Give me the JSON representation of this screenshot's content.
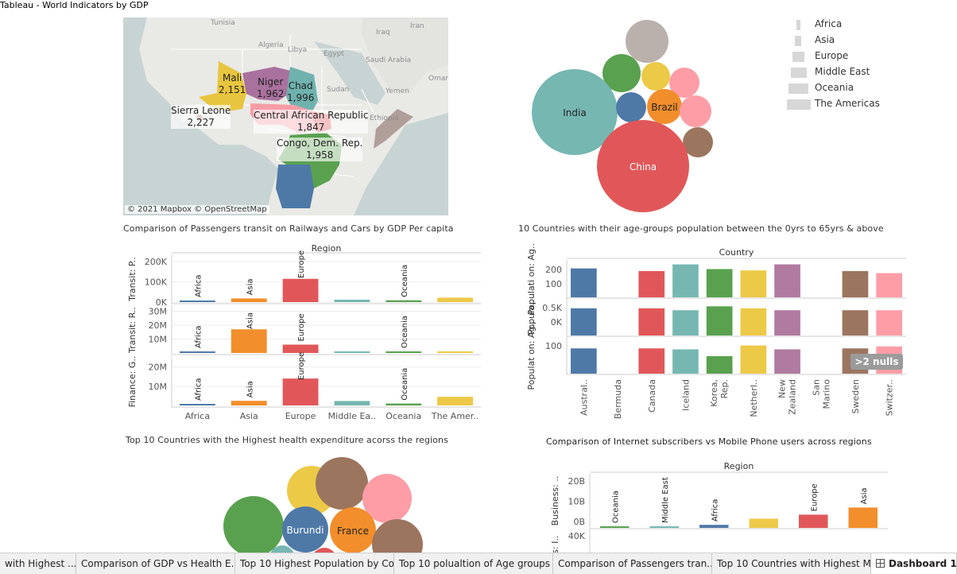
{
  "window": {
    "title": "Tableau - World Indicators by GDP"
  },
  "map": {
    "credit": "© 2021 Mapbox © OpenStreetMap",
    "geo_labels": [
      "Tunisia",
      "Algeria",
      "Libya",
      "Egypt",
      "Iran",
      "Iraq",
      "Saudi Arabia",
      "Oman",
      "Yemen",
      "Sudan",
      "Ethiopia"
    ],
    "countries": [
      {
        "name": "Mali",
        "value": "2,151",
        "color": "#e8c53e"
      },
      {
        "name": "Niger",
        "value": "1,962",
        "color": "#a9719d"
      },
      {
        "name": "Chad",
        "value": "1,996",
        "color": "#6fb2ad"
      },
      {
        "name": "Sierra Leone",
        "value": "2,227",
        "color": "#9c7459"
      },
      {
        "name": "Central African Republic",
        "value": "1,847",
        "color": "#e0535a"
      },
      {
        "name": "Congo, Dem. Rep.",
        "value": "1,958",
        "color": "#59a14f"
      }
    ]
  },
  "bubble_top": {
    "legend": [
      "Africa",
      "Asia",
      "Europe",
      "Middle East",
      "Oceania",
      "The Americas"
    ],
    "bubbles": [
      {
        "label": "India",
        "color": "#76b7b2"
      },
      {
        "label": "China",
        "color": "#e15759"
      },
      {
        "label": "Brazil",
        "color": "#f28e2b"
      }
    ]
  },
  "panel_titles": {
    "transit": "Comparison of Passengers transit on Railways and Cars by GDP Per capita",
    "age_groups": "10 Countries with their age-groups population between the 0yrs to 65yrs & above",
    "health": "Top 10 Countries with the Highest health expenditure acorss the regions",
    "internet": "Comparison of Internet subscribers  vs Mobile Phone users across regions"
  },
  "chart_data": [
    {
      "type": "bar",
      "title": "Comparison of Passengers transit on Railways and Cars by GDP Per capita",
      "column_header": "Region",
      "categories": [
        "Africa",
        "Asia",
        "Europe",
        "Middle Ea..",
        "Oceania",
        "The Amer.."
      ],
      "colors": [
        "#4e79a7",
        "#f28e2b",
        "#e15759",
        "#76b7b2",
        "#59a14f",
        "#edc948"
      ],
      "rows": [
        {
          "axis_label": "Transit: P..",
          "ticks": [
            "200K",
            "100K",
            "0K"
          ],
          "ylim": [
            0,
            220000
          ],
          "values": [
            5000,
            18000,
            115000,
            12000,
            9000,
            22000
          ],
          "bar_labels": [
            "Africa",
            "Asia",
            "Europe",
            "",
            "Oceania",
            ""
          ]
        },
        {
          "axis_label": "Transit: R..",
          "ticks": [
            "30M",
            "20M",
            "10M"
          ],
          "ylim": [
            0,
            32000000
          ],
          "values": [
            400000,
            17000000,
            6000000,
            0,
            0,
            0
          ],
          "bar_labels": [
            "Africa",
            "Asia",
            "Europe",
            "",
            "Oceania",
            ""
          ]
        },
        {
          "axis_label": "Finance: G..",
          "ticks": [
            "20M",
            "10M"
          ],
          "ylim": [
            0,
            24000000
          ],
          "values": [
            800000,
            2400000,
            14000000,
            2300000,
            1000000,
            4500000
          ],
          "bar_labels": [
            "Africa",
            "Asia",
            "Europe",
            "",
            "Oceania",
            ""
          ]
        }
      ]
    },
    {
      "type": "bar",
      "title": "10 Countries with their age-groups population between the 0yrs to 65yrs & above",
      "column_header": "Country",
      "categories": [
        "Austral..",
        "Bermuda",
        "Canada",
        "Iceland",
        "Korea, Rep.",
        "Netherl..",
        "New Zealand",
        "San Marino",
        "Sweden",
        "Switzer.."
      ],
      "colors": [
        "#4e79a7",
        "#f28e2b",
        "#e15759",
        "#76b7b2",
        "#59a14f",
        "#edc948",
        "#b07aa1",
        "#ff9da7",
        "#9c755f",
        "#ff9da7"
      ],
      "null_badge": ">2 nulls",
      "rows": [
        {
          "axis_label": "Populati on: Ag..",
          "ticks": [
            "200",
            "100"
          ],
          "ylim": [
            0,
            260
          ],
          "values": [
            215,
            null,
            195,
            245,
            210,
            200,
            245,
            null,
            195,
            180
          ]
        },
        {
          "axis_label": "Popula..",
          "ticks": [
            "0.5K",
            "0K"
          ],
          "ylim": [
            0,
            0.9
          ],
          "values": [
            0.7,
            null,
            0.7,
            0.65,
            0.75,
            0.7,
            0.65,
            null,
            0.65,
            0.65
          ]
        },
        {
          "axis_label": "Populat on: Ag..",
          "ticks": [
            "100"
          ],
          "ylim": [
            0,
            180
          ],
          "values": [
            130,
            null,
            130,
            125,
            90,
            145,
            125,
            null,
            130,
            140
          ]
        }
      ]
    },
    {
      "type": "bar",
      "title": "Comparison of Internet subscribers  vs Mobile Phone users across regions",
      "column_header": "Region",
      "colors": [
        "#59a14f",
        "#76b7b2",
        "#4e79a7",
        "#edc948",
        "#e15759",
        "#f28e2b"
      ],
      "bar_labels": [
        "Oceania",
        "Middle East",
        "Africa",
        "",
        "Europe",
        "Asia"
      ],
      "rows": [
        {
          "axis_label": "Business: ..",
          "ticks": [
            "20B",
            "10B",
            "0B"
          ],
          "ylim": [
            0,
            25000000000
          ],
          "values": [
            150000000,
            400000000,
            1500000000,
            4500000000,
            6500000000,
            10000000000
          ]
        },
        {
          "axis_label": "ss: I..",
          "ticks": [
            "40K"
          ],
          "ylim": [
            0,
            50000
          ],
          "values": []
        }
      ]
    }
  ],
  "bubble_bottom": {
    "bubbles": [
      {
        "label": "Burundi",
        "color": "#4e79a7"
      },
      {
        "label": "France",
        "color": "#f28e2b"
      }
    ]
  },
  "tabs": [
    {
      "label": "with Highest ...",
      "active": false
    },
    {
      "label": "Comparison of GDP vs Health E...",
      "active": false
    },
    {
      "label": "Top 10 Highest Population by Co...",
      "active": false
    },
    {
      "label": "Top 10 polualtion of Age groups ...",
      "active": false
    },
    {
      "label": "Comparison of Passengers tran...",
      "active": false
    },
    {
      "label": "Top 10 Countries with Highest M...",
      "active": false
    },
    {
      "label": "Dashboard 1",
      "active": true
    }
  ]
}
